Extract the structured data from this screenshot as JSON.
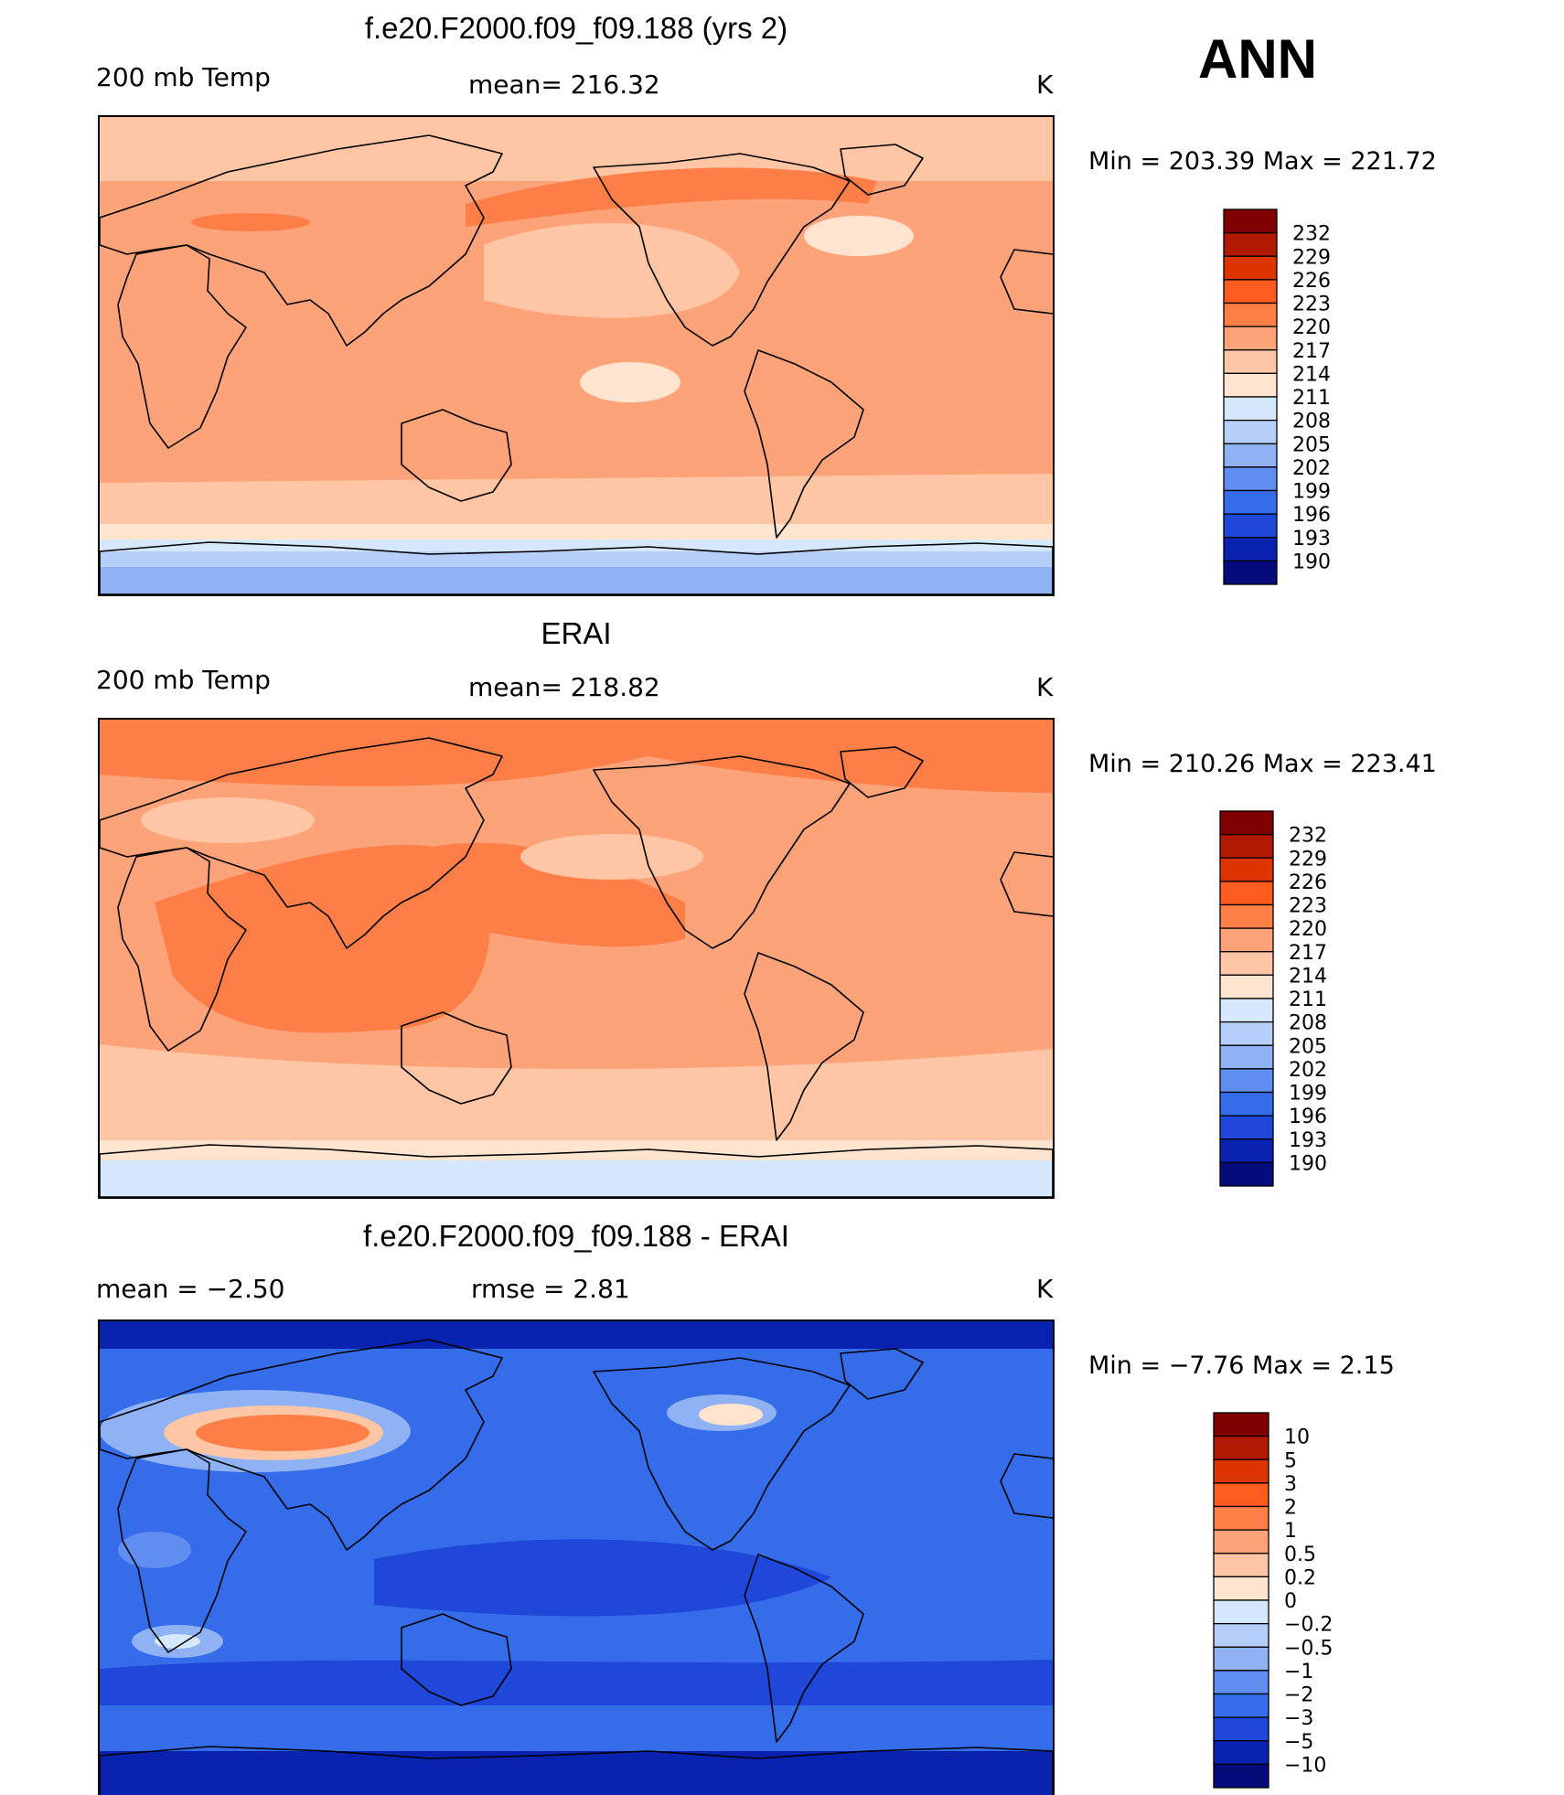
{
  "season": "ANN",
  "panels": [
    {
      "title": "f.e20.F2000.f09_f09.188 (yrs 2)",
      "left_label": "200 mb Temp",
      "center_label": "mean= 216.32",
      "units": "K",
      "minmax": "Min  =  203.39  Max  =  221.72",
      "colorbar_labels": [
        "232",
        "229",
        "226",
        "223",
        "220",
        "217",
        "214",
        "211",
        "208",
        "205",
        "202",
        "199",
        "196",
        "193",
        "190"
      ],
      "colorbar_colors": [
        "#7f0000",
        "#b21a00",
        "#de3500",
        "#ff5b1f",
        "#fd7e47",
        "#fda37a",
        "#ffc6a5",
        "#ffe5d0",
        "#d6e8fc",
        "#b6cffa",
        "#8fb2f5",
        "#5f8ef0",
        "#356cea",
        "#1f48db",
        "#0a22b0",
        "#050b7a"
      ],
      "field": "model"
    },
    {
      "title": "ERAI",
      "left_label": "200 mb Temp",
      "center_label": "mean= 218.82",
      "units": "K",
      "minmax": "Min  =  210.26  Max  =  223.41",
      "colorbar_labels": [
        "232",
        "229",
        "226",
        "223",
        "220",
        "217",
        "214",
        "211",
        "208",
        "205",
        "202",
        "199",
        "196",
        "193",
        "190"
      ],
      "colorbar_colors": [
        "#7f0000",
        "#b21a00",
        "#de3500",
        "#ff5b1f",
        "#fd7e47",
        "#fda37a",
        "#ffc6a5",
        "#ffe5d0",
        "#d6e8fc",
        "#b6cffa",
        "#8fb2f5",
        "#5f8ef0",
        "#356cea",
        "#1f48db",
        "#0a22b0",
        "#050b7a"
      ],
      "field": "obs"
    },
    {
      "title": "f.e20.F2000.f09_f09.188 - ERAI",
      "left_label": "mean  =    −2.50",
      "center_label": "rmse  =     2.81",
      "units": "K",
      "minmax": "Min  =   −7.76  Max  =     2.15",
      "colorbar_labels": [
        "10",
        "5",
        "3",
        "2",
        "1",
        "0.5",
        "0.2",
        "0",
        "−0.2",
        "−0.5",
        "−1",
        "−2",
        "−3",
        "−5",
        "−10"
      ],
      "colorbar_colors": [
        "#7f0000",
        "#b21a00",
        "#de3500",
        "#ff5b1f",
        "#fd7e47",
        "#fda37a",
        "#ffc6a5",
        "#ffe5d0",
        "#d6e8fc",
        "#b6cffa",
        "#8fb2f5",
        "#5f8ef0",
        "#356cea",
        "#1f48db",
        "#0a22b0",
        "#050b7a"
      ],
      "field": "diff"
    }
  ],
  "field_colors": {
    "model_base": "#fda37a",
    "model_light": "#ffc6a5",
    "model_pale": "#ffe5d0",
    "model_warm": "#fd7e47",
    "polar_1": "#d6e8fc",
    "polar_2": "#b6cffa",
    "polar_3": "#8fb2f5",
    "diff_base": "#356cea",
    "diff_dark": "#1f48db",
    "diff_darker": "#0a22b0",
    "diff_light": "#5f8ef0",
    "diff_pale": "#8fb2f5",
    "diff_warm": "#fd7e47"
  }
}
